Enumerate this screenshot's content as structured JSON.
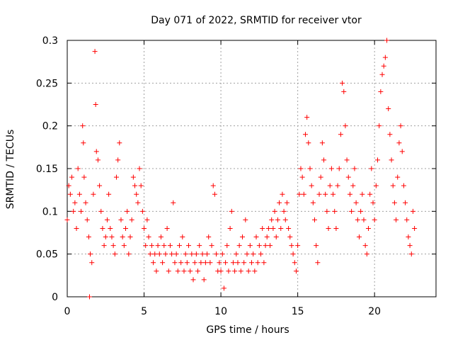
{
  "chart_data": {
    "type": "scatter",
    "title": "Day 071 of 2022, SRMTID for receiver vtor",
    "xlabel": "GPS time / hours",
    "ylabel": "SRMTID / TECUs",
    "xlim": [
      0,
      24
    ],
    "ylim": [
      0,
      0.3
    ],
    "xticks": [
      0,
      5,
      10,
      15,
      20
    ],
    "yticks": [
      0,
      0.05,
      0.1,
      0.15,
      0.2,
      0.25,
      0.3
    ],
    "xtick_labels": [
      "0",
      "5",
      "10",
      "15",
      "20"
    ],
    "ytick_labels": [
      "0",
      "0.05",
      "0.1",
      "0.15",
      "0.2",
      "0.25",
      "0.3"
    ],
    "grid": true,
    "marker": "plus",
    "color": "#ff0000",
    "series": [
      {
        "name": "SRMTID",
        "points": [
          [
            0.0,
            0.09
          ],
          [
            0.1,
            0.13
          ],
          [
            0.2,
            0.12
          ],
          [
            0.3,
            0.14
          ],
          [
            0.4,
            0.1
          ],
          [
            0.5,
            0.11
          ],
          [
            0.6,
            0.08
          ],
          [
            0.7,
            0.15
          ],
          [
            0.8,
            0.12
          ],
          [
            0.9,
            0.1
          ],
          [
            1.0,
            0.2
          ],
          [
            1.05,
            0.18
          ],
          [
            1.1,
            0.14
          ],
          [
            1.2,
            0.11
          ],
          [
            1.3,
            0.09
          ],
          [
            1.4,
            0.07
          ],
          [
            1.45,
            0.0
          ],
          [
            1.5,
            0.05
          ],
          [
            1.6,
            0.04
          ],
          [
            1.7,
            0.12
          ],
          [
            1.8,
            0.287
          ],
          [
            1.85,
            0.225
          ],
          [
            1.9,
            0.17
          ],
          [
            2.0,
            0.16
          ],
          [
            2.1,
            0.13
          ],
          [
            2.2,
            0.1
          ],
          [
            2.3,
            0.08
          ],
          [
            2.4,
            0.06
          ],
          [
            2.5,
            0.07
          ],
          [
            2.6,
            0.09
          ],
          [
            2.7,
            0.12
          ],
          [
            2.8,
            0.08
          ],
          [
            2.9,
            0.07
          ],
          [
            3.0,
            0.06
          ],
          [
            3.1,
            0.05
          ],
          [
            3.2,
            0.14
          ],
          [
            3.3,
            0.16
          ],
          [
            3.4,
            0.18
          ],
          [
            3.5,
            0.09
          ],
          [
            3.6,
            0.07
          ],
          [
            3.7,
            0.06
          ],
          [
            3.8,
            0.08
          ],
          [
            3.9,
            0.1
          ],
          [
            4.0,
            0.05
          ],
          [
            4.1,
            0.07
          ],
          [
            4.2,
            0.09
          ],
          [
            4.3,
            0.14
          ],
          [
            4.4,
            0.13
          ],
          [
            4.5,
            0.12
          ],
          [
            4.6,
            0.11
          ],
          [
            4.7,
            0.15
          ],
          [
            4.8,
            0.13
          ],
          [
            4.9,
            0.1
          ],
          [
            5.0,
            0.08
          ],
          [
            5.1,
            0.06
          ],
          [
            5.2,
            0.09
          ],
          [
            5.3,
            0.07
          ],
          [
            5.4,
            0.05
          ],
          [
            5.5,
            0.06
          ],
          [
            5.6,
            0.04
          ],
          [
            5.7,
            0.05
          ],
          [
            5.8,
            0.03
          ],
          [
            5.9,
            0.06
          ],
          [
            6.0,
            0.05
          ],
          [
            6.1,
            0.07
          ],
          [
            6.2,
            0.04
          ],
          [
            6.3,
            0.06
          ],
          [
            6.4,
            0.05
          ],
          [
            6.5,
            0.08
          ],
          [
            6.6,
            0.03
          ],
          [
            6.7,
            0.06
          ],
          [
            6.8,
            0.05
          ],
          [
            6.9,
            0.11
          ],
          [
            7.0,
            0.04
          ],
          [
            7.1,
            0.05
          ],
          [
            7.2,
            0.03
          ],
          [
            7.3,
            0.06
          ],
          [
            7.4,
            0.04
          ],
          [
            7.5,
            0.07
          ],
          [
            7.6,
            0.03
          ],
          [
            7.7,
            0.05
          ],
          [
            7.8,
            0.04
          ],
          [
            7.9,
            0.06
          ],
          [
            8.0,
            0.03
          ],
          [
            8.1,
            0.05
          ],
          [
            8.2,
            0.02
          ],
          [
            8.3,
            0.04
          ],
          [
            8.4,
            0.05
          ],
          [
            8.5,
            0.03
          ],
          [
            8.6,
            0.06
          ],
          [
            8.7,
            0.04
          ],
          [
            8.8,
            0.05
          ],
          [
            8.9,
            0.02
          ],
          [
            9.0,
            0.04
          ],
          [
            9.1,
            0.05
          ],
          [
            9.2,
            0.07
          ],
          [
            9.3,
            0.04
          ],
          [
            9.4,
            0.06
          ],
          [
            9.5,
            0.13
          ],
          [
            9.6,
            0.12
          ],
          [
            9.7,
            0.05
          ],
          [
            9.8,
            0.03
          ],
          [
            9.9,
            0.04
          ],
          [
            10.0,
            0.03
          ],
          [
            10.1,
            0.05
          ],
          [
            10.2,
            0.01
          ],
          [
            10.3,
            0.04
          ],
          [
            10.4,
            0.06
          ],
          [
            10.5,
            0.03
          ],
          [
            10.6,
            0.08
          ],
          [
            10.7,
            0.1
          ],
          [
            10.8,
            0.04
          ],
          [
            10.9,
            0.03
          ],
          [
            11.0,
            0.05
          ],
          [
            11.1,
            0.04
          ],
          [
            11.2,
            0.06
          ],
          [
            11.3,
            0.03
          ],
          [
            11.4,
            0.07
          ],
          [
            11.5,
            0.04
          ],
          [
            11.6,
            0.09
          ],
          [
            11.7,
            0.05
          ],
          [
            11.8,
            0.03
          ],
          [
            11.9,
            0.06
          ],
          [
            12.0,
            0.04
          ],
          [
            12.1,
            0.05
          ],
          [
            12.2,
            0.03
          ],
          [
            12.3,
            0.07
          ],
          [
            12.4,
            0.04
          ],
          [
            12.5,
            0.06
          ],
          [
            12.6,
            0.05
          ],
          [
            12.7,
            0.08
          ],
          [
            12.8,
            0.04
          ],
          [
            12.9,
            0.06
          ],
          [
            13.0,
            0.07
          ],
          [
            13.1,
            0.08
          ],
          [
            13.2,
            0.06
          ],
          [
            13.3,
            0.09
          ],
          [
            13.4,
            0.08
          ],
          [
            13.5,
            0.1
          ],
          [
            13.6,
            0.07
          ],
          [
            13.7,
            0.09
          ],
          [
            13.8,
            0.11
          ],
          [
            13.9,
            0.08
          ],
          [
            14.0,
            0.12
          ],
          [
            14.1,
            0.1
          ],
          [
            14.2,
            0.09
          ],
          [
            14.3,
            0.11
          ],
          [
            14.4,
            0.08
          ],
          [
            14.5,
            0.07
          ],
          [
            14.6,
            0.06
          ],
          [
            14.7,
            0.05
          ],
          [
            14.8,
            0.04
          ],
          [
            14.9,
            0.03
          ],
          [
            15.0,
            0.06
          ],
          [
            15.1,
            0.12
          ],
          [
            15.2,
            0.15
          ],
          [
            15.3,
            0.14
          ],
          [
            15.4,
            0.12
          ],
          [
            15.5,
            0.19
          ],
          [
            15.6,
            0.21
          ],
          [
            15.7,
            0.18
          ],
          [
            15.8,
            0.15
          ],
          [
            15.9,
            0.13
          ],
          [
            16.0,
            0.11
          ],
          [
            16.1,
            0.09
          ],
          [
            16.2,
            0.06
          ],
          [
            16.3,
            0.04
          ],
          [
            16.4,
            0.12
          ],
          [
            16.5,
            0.14
          ],
          [
            16.6,
            0.18
          ],
          [
            16.7,
            0.16
          ],
          [
            16.8,
            0.12
          ],
          [
            16.9,
            0.1
          ],
          [
            17.0,
            0.08
          ],
          [
            17.1,
            0.13
          ],
          [
            17.2,
            0.15
          ],
          [
            17.3,
            0.12
          ],
          [
            17.4,
            0.1
          ],
          [
            17.5,
            0.08
          ],
          [
            17.6,
            0.13
          ],
          [
            17.7,
            0.15
          ],
          [
            17.8,
            0.19
          ],
          [
            17.9,
            0.25
          ],
          [
            18.0,
            0.24
          ],
          [
            18.1,
            0.2
          ],
          [
            18.2,
            0.16
          ],
          [
            18.3,
            0.14
          ],
          [
            18.4,
            0.12
          ],
          [
            18.5,
            0.1
          ],
          [
            18.6,
            0.13
          ],
          [
            18.7,
            0.15
          ],
          [
            18.8,
            0.11
          ],
          [
            18.9,
            0.09
          ],
          [
            19.0,
            0.07
          ],
          [
            19.1,
            0.1
          ],
          [
            19.2,
            0.12
          ],
          [
            19.3,
            0.09
          ],
          [
            19.4,
            0.06
          ],
          [
            19.5,
            0.05
          ],
          [
            19.6,
            0.08
          ],
          [
            19.7,
            0.12
          ],
          [
            19.8,
            0.15
          ],
          [
            19.9,
            0.11
          ],
          [
            20.0,
            0.09
          ],
          [
            20.1,
            0.13
          ],
          [
            20.2,
            0.16
          ],
          [
            20.3,
            0.2
          ],
          [
            20.4,
            0.24
          ],
          [
            20.5,
            0.26
          ],
          [
            20.6,
            0.27
          ],
          [
            20.7,
            0.28
          ],
          [
            20.8,
            0.3
          ],
          [
            20.9,
            0.22
          ],
          [
            21.0,
            0.19
          ],
          [
            21.1,
            0.16
          ],
          [
            21.2,
            0.13
          ],
          [
            21.3,
            0.11
          ],
          [
            21.4,
            0.09
          ],
          [
            21.5,
            0.14
          ],
          [
            21.6,
            0.18
          ],
          [
            21.7,
            0.2
          ],
          [
            21.8,
            0.17
          ],
          [
            21.9,
            0.13
          ],
          [
            22.0,
            0.11
          ],
          [
            22.1,
            0.09
          ],
          [
            22.2,
            0.07
          ],
          [
            22.3,
            0.06
          ],
          [
            22.4,
            0.05
          ],
          [
            22.5,
            0.1
          ],
          [
            22.6,
            0.08
          ]
        ]
      }
    ]
  }
}
